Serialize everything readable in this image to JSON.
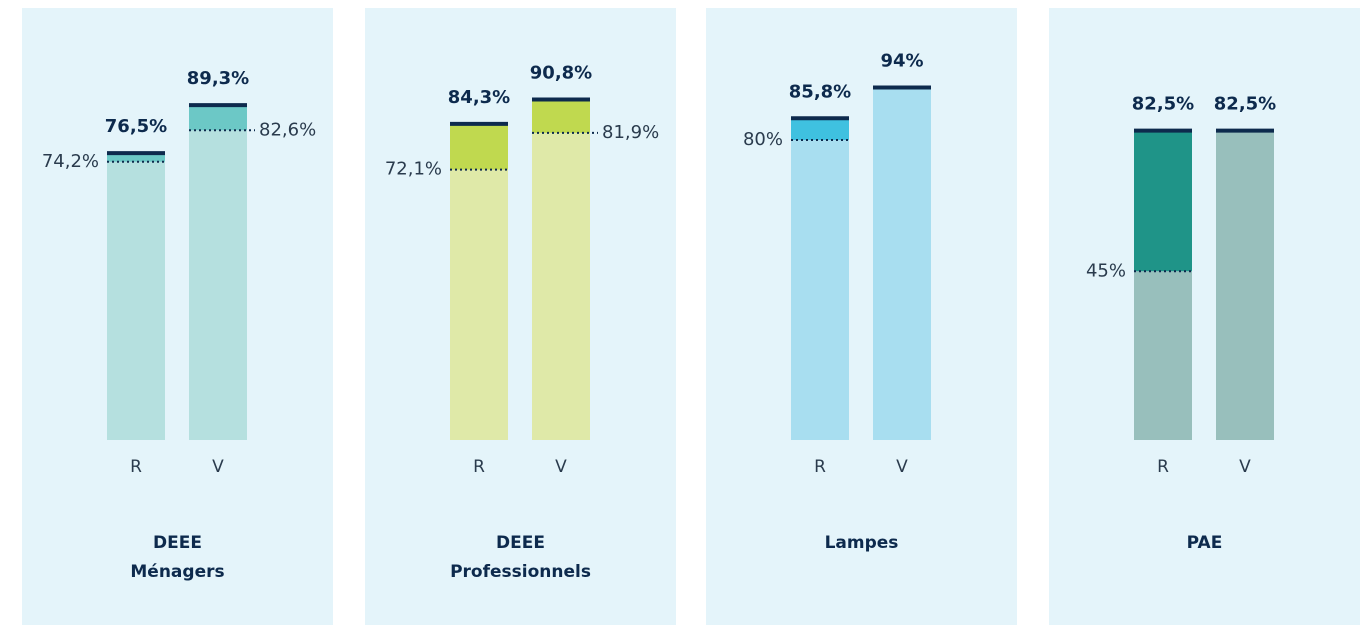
{
  "chart_data": [
    {
      "type": "bar",
      "title": [
        "DEEE",
        "Ménagers"
      ],
      "categories": [
        "R",
        "V"
      ],
      "values": [
        76.5,
        89.3
      ],
      "value_labels": [
        "76,5%",
        "89,3%"
      ],
      "targets": [
        74.2,
        82.6
      ],
      "target_labels": [
        "74,2%",
        "82,6%"
      ],
      "color": "#b5e0df",
      "highlight_color": "#6cc8c6",
      "ylim": [
        0,
        100
      ]
    },
    {
      "type": "bar",
      "title": [
        "DEEE",
        "Professionnels"
      ],
      "categories": [
        "R",
        "V"
      ],
      "values": [
        84.3,
        90.8
      ],
      "value_labels": [
        "84,3%",
        "90,8%"
      ],
      "targets": [
        72.1,
        81.9
      ],
      "target_labels": [
        "72,1%",
        "81,9%"
      ],
      "color": "#dfe9a8",
      "highlight_color": "#c0d94f",
      "ylim": [
        0,
        100
      ]
    },
    {
      "type": "bar",
      "title": [
        "Lampes"
      ],
      "categories": [
        "R",
        "V"
      ],
      "values": [
        85.8,
        94
      ],
      "value_labels": [
        "85,8%",
        "94%"
      ],
      "targets": [
        80,
        null
      ],
      "target_labels": [
        "80%",
        null
      ],
      "color": "#a8def0",
      "highlight_color": "#3fc1e0",
      "ylim": [
        0,
        100
      ]
    },
    {
      "type": "bar",
      "title": [
        "PAE"
      ],
      "categories": [
        "R",
        "V"
      ],
      "values": [
        82.5,
        82.5
      ],
      "value_labels": [
        "82,5%",
        "82,5%"
      ],
      "targets": [
        45,
        null
      ],
      "target_labels": [
        "45%",
        null
      ],
      "color": "#98bfbc",
      "highlight_color": "#1f9488",
      "ylim": [
        0,
        100
      ]
    }
  ]
}
